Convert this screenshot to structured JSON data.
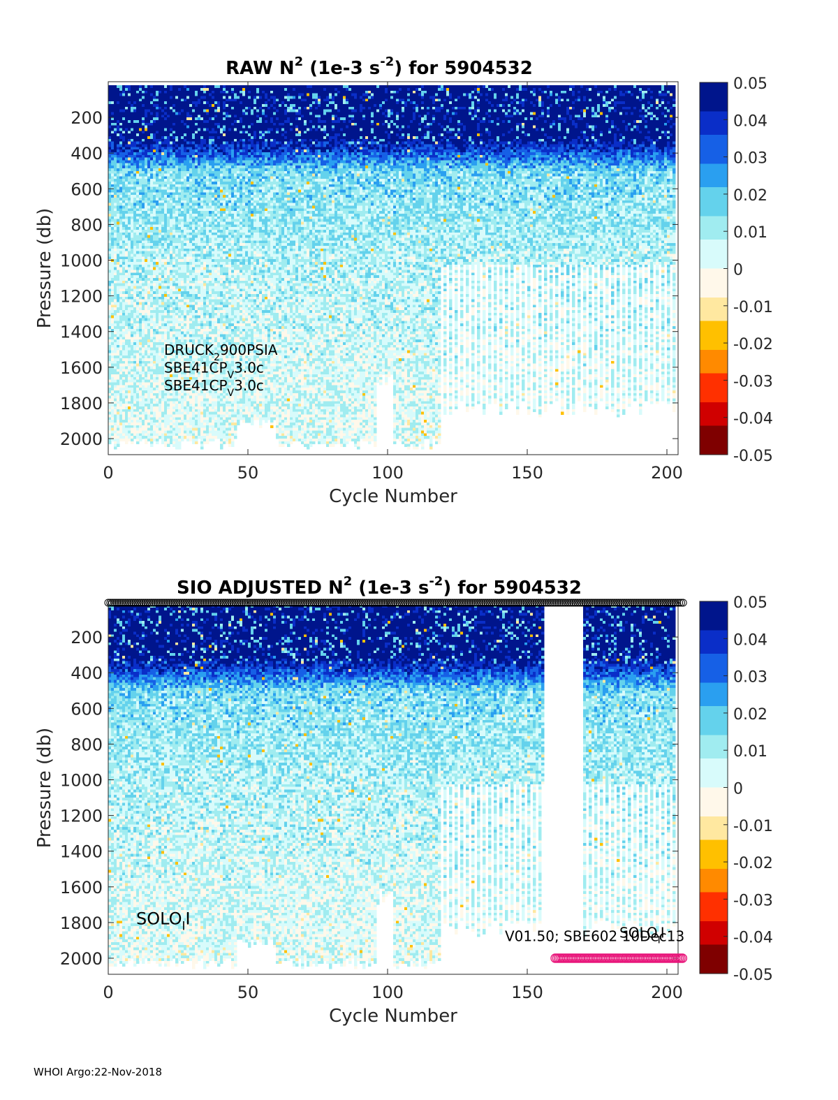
{
  "footer": "WHOI Argo:22-Nov-2018",
  "colormap": [
    "#7f0000",
    "#d00000",
    "#ff3000",
    "#ff8a00",
    "#ffc000",
    "#ffe8a0",
    "#fff8ea",
    "#d8fbfb",
    "#a0ecf0",
    "#64d2ec",
    "#2a9ff0",
    "#1660e6",
    "#0a2ec8",
    "#00158c"
  ],
  "chart_data": [
    {
      "type": "heatmap",
      "title": {
        "pre": "RAW N",
        "sup1": "2",
        "mid": " (1e-3 s",
        "sup2": "-2",
        "post": ") for 5904532"
      },
      "xlabel": "Cycle Number",
      "ylabel": "Pressure (db)",
      "xlim": [
        0,
        204
      ],
      "ylim": [
        2090,
        0
      ],
      "xticks": [
        0,
        50,
        100,
        150,
        200
      ],
      "yticks": [
        200,
        400,
        600,
        800,
        1000,
        1200,
        1400,
        1600,
        1800,
        2000
      ],
      "colorbar": {
        "range": [
          -0.05,
          0.05
        ],
        "ticks": [
          0.05,
          0.04,
          0.03,
          0.02,
          0.01,
          0,
          -0.01,
          -0.02,
          -0.03,
          -0.04,
          -0.05
        ]
      },
      "color_scale_note": "",
      "data_gap_cycles": [],
      "profile_depth": {
        "cycles_0_118": "~2000 db (partial gaps)",
        "cycles_119_202": "full columns to ~1000 db, alternating columns to ~1800 db"
      },
      "annotations": [
        {
          "text": "DRUCK",
          "sub": "2",
          "tail": "900PSIA",
          "x": 20,
          "p": 1530
        },
        {
          "text": "SBE41CP",
          "sub": "V",
          "tail": "3.0c",
          "x": 20,
          "p": 1630
        },
        {
          "text": "SBE41CP",
          "sub": "V",
          "tail": "3.0c",
          "x": 20,
          "p": 1730
        }
      ],
      "markers": false
    },
    {
      "type": "heatmap",
      "title": {
        "pre": "SIO  ADJUSTED N",
        "sup1": "2",
        "mid": " (1e-3 s",
        "sup2": "-2",
        "post": ") for 5904532"
      },
      "xlabel": "Cycle Number",
      "ylabel": "Pressure (db)",
      "xlim": [
        0,
        204
      ],
      "ylim": [
        2090,
        0
      ],
      "xticks": [
        0,
        50,
        100,
        150,
        200
      ],
      "yticks": [
        200,
        400,
        600,
        800,
        1000,
        1200,
        1400,
        1600,
        1800,
        2000
      ],
      "colorbar": {
        "range": [
          -0.05,
          0.05
        ],
        "ticks": [
          0.05,
          0.04,
          0.03,
          0.02,
          0.01,
          0,
          -0.01,
          -0.02,
          -0.03,
          -0.04,
          -0.05
        ]
      },
      "data_gap_cycles": [
        156,
        169
      ],
      "annotations": [
        {
          "text": "SOLO",
          "sub": "I",
          "tail": "I",
          "x": 10,
          "p": 1810,
          "size": "large"
        },
        {
          "text": "V01.50; SBE602 10Dec13",
          "x": 142,
          "p": 1905
        },
        {
          "text": "SOLO",
          "sub": "I",
          "tail": "I",
          "x": 183,
          "p": 1885,
          "size": "small"
        }
      ],
      "markers": {
        "top_black_circles": {
          "cycles": [
            0,
            206
          ],
          "p": 0
        },
        "bottom_pink_circles": {
          "cycles": [
            160,
            206
          ],
          "p": 2000,
          "color": "#e8157a"
        }
      }
    }
  ]
}
